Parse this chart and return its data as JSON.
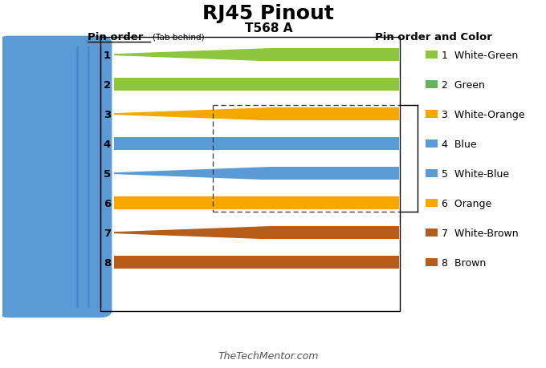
{
  "title": "RJ45 Pinout",
  "subtitle": "T568 A",
  "pin_order_label": "Pin order",
  "tab_note": "(Tab behind)",
  "right_header": "Pin order and Color",
  "watermark": "TheTechMentor.com",
  "pin_names": [
    "White-Green",
    "Green",
    "White-Orange",
    "Blue",
    "White-Blue",
    "Orange",
    "White-Brown",
    "Brown"
  ],
  "pin_colors_main": [
    "#8dc63f",
    "#8dc63f",
    "#f7a800",
    "#5b9bd5",
    "#5b9bd5",
    "#f7a800",
    "#b85c1a",
    "#b85c1a"
  ],
  "has_stripe": [
    true,
    false,
    true,
    false,
    true,
    false,
    true,
    false
  ],
  "connector_color": "#5b9bd5",
  "connector_edge_color": "#4a86c8",
  "background_color": "#ffffff",
  "box_color": "#000000",
  "dashed_color": "#333333",
  "right_swatch_colors": [
    "#8dc63f",
    "#5cb85c",
    "#f7a800",
    "#5b9bd5",
    "#5b9bd5",
    "#f7a800",
    "#b85c1a",
    "#b85c1a"
  ]
}
